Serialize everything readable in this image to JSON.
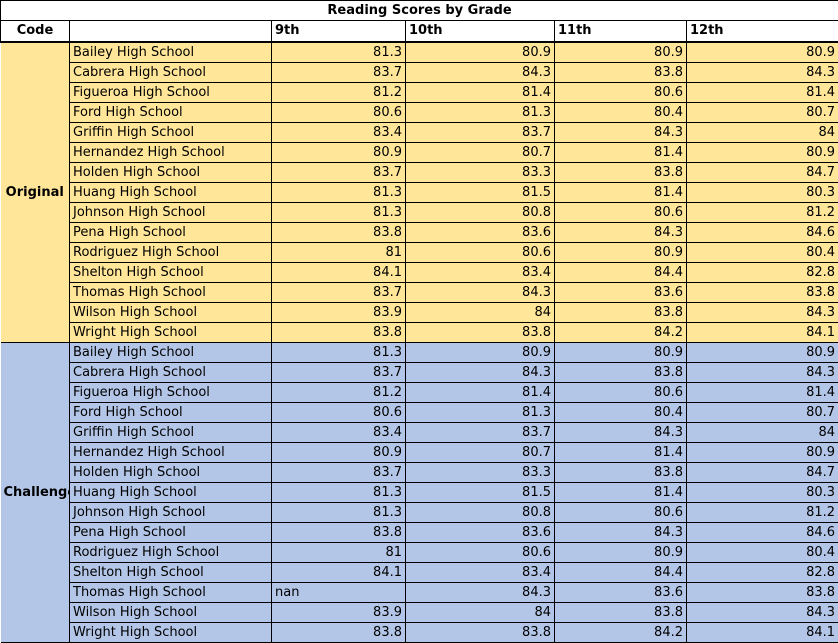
{
  "title": "Reading Scores by Grade",
  "headers": [
    "Code",
    "",
    "9th",
    "10th",
    "11th",
    "12th"
  ],
  "groups": [
    {
      "name": "Original",
      "color": "#ffe699",
      "rows": [
        [
          "Bailey High School",
          "81.3",
          "80.9",
          "80.9",
          "80.9"
        ],
        [
          "Cabrera High School",
          "83.7",
          "84.3",
          "83.8",
          "84.3"
        ],
        [
          "Figueroa High School",
          "81.2",
          "81.4",
          "80.6",
          "81.4"
        ],
        [
          "Ford High School",
          "80.6",
          "81.3",
          "80.4",
          "80.7"
        ],
        [
          "Griffin High School",
          "83.4",
          "83.7",
          "84.3",
          "84"
        ],
        [
          "Hernandez High School",
          "80.9",
          "80.7",
          "81.4",
          "80.9"
        ],
        [
          "Holden High School",
          "83.7",
          "83.3",
          "83.8",
          "84.7"
        ],
        [
          "Huang High School",
          "81.3",
          "81.5",
          "81.4",
          "80.3"
        ],
        [
          "Johnson High School",
          "81.3",
          "80.8",
          "80.6",
          "81.2"
        ],
        [
          "Pena High School",
          "83.8",
          "83.6",
          "84.3",
          "84.6"
        ],
        [
          "Rodriguez High School",
          "81",
          "80.6",
          "80.9",
          "80.4"
        ],
        [
          "Shelton High School",
          "84.1",
          "83.4",
          "84.4",
          "82.8"
        ],
        [
          "Thomas High School",
          "83.7",
          "84.3",
          "83.6",
          "83.8"
        ],
        [
          "Wilson High School",
          "83.9",
          "84",
          "83.8",
          "84.3"
        ],
        [
          "Wright High School",
          "83.8",
          "83.8",
          "84.2",
          "84.1"
        ]
      ]
    },
    {
      "name": "Challenge",
      "color": "#b4c6e7",
      "rows": [
        [
          "Bailey High School",
          "81.3",
          "80.9",
          "80.9",
          "80.9"
        ],
        [
          "Cabrera High School",
          "83.7",
          "84.3",
          "83.8",
          "84.3"
        ],
        [
          "Figueroa High School",
          "81.2",
          "81.4",
          "80.6",
          "81.4"
        ],
        [
          "Ford High School",
          "80.6",
          "81.3",
          "80.4",
          "80.7"
        ],
        [
          "Griffin High School",
          "83.4",
          "83.7",
          "84.3",
          "84"
        ],
        [
          "Hernandez High School",
          "80.9",
          "80.7",
          "81.4",
          "80.9"
        ],
        [
          "Holden High School",
          "83.7",
          "83.3",
          "83.8",
          "84.7"
        ],
        [
          "Huang High School",
          "81.3",
          "81.5",
          "81.4",
          "80.3"
        ],
        [
          "Johnson High School",
          "81.3",
          "80.8",
          "80.6",
          "81.2"
        ],
        [
          "Pena High School",
          "83.8",
          "83.6",
          "84.3",
          "84.6"
        ],
        [
          "Rodriguez High School",
          "81",
          "80.6",
          "80.9",
          "80.4"
        ],
        [
          "Shelton High School",
          "84.1",
          "83.4",
          "84.4",
          "82.8"
        ],
        [
          "Thomas High School",
          "nan",
          "84.3",
          "83.6",
          "83.8"
        ],
        [
          "Wilson High School",
          "83.9",
          "84",
          "83.8",
          "84.3"
        ],
        [
          "Wright High School",
          "83.8",
          "83.8",
          "84.2",
          "84.1"
        ]
      ]
    }
  ]
}
